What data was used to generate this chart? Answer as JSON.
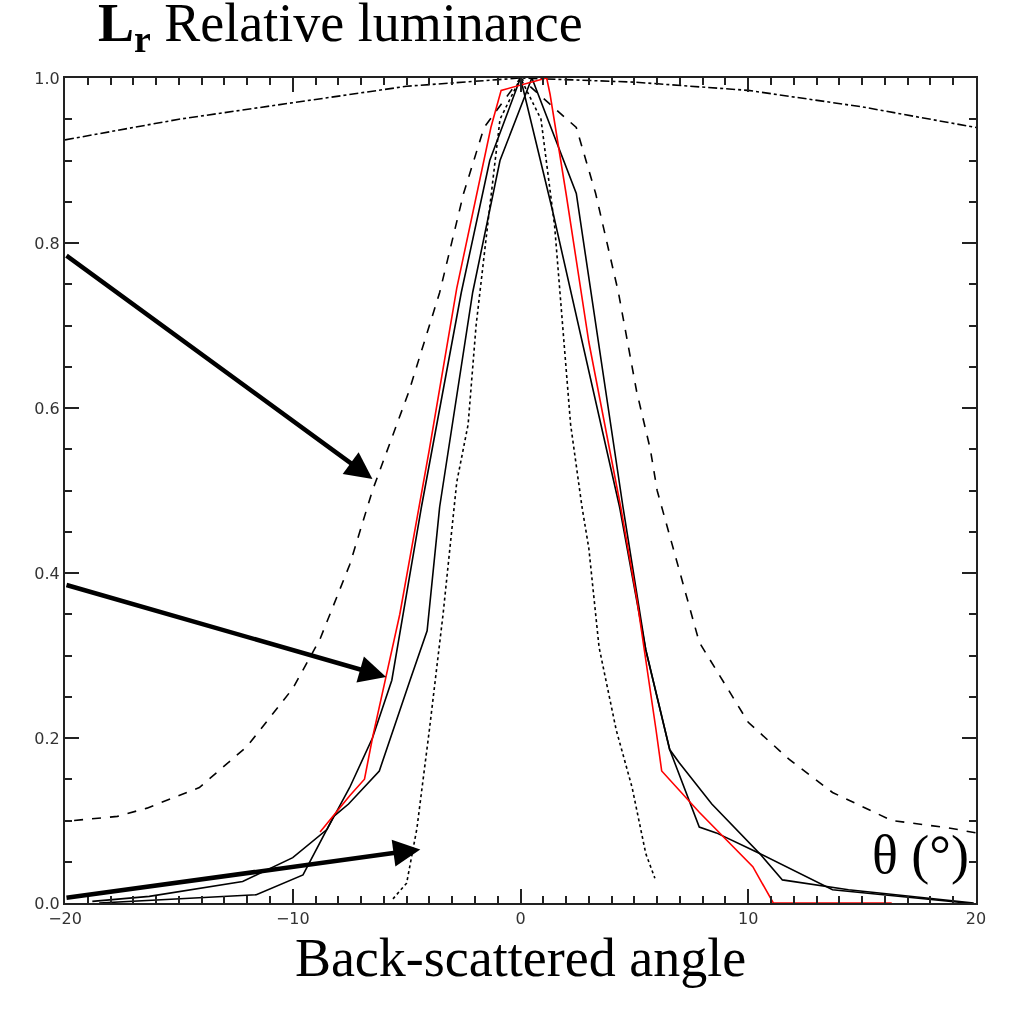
{
  "chart_data": {
    "type": "line",
    "title": "L$_{r}$ Relative luminance",
    "xlabel": "Back-scattered angle",
    "annotations": [
      "θ (°)"
    ],
    "xlim": [
      -20,
      20
    ],
    "ylim": [
      0,
      1.0
    ],
    "marker": "none",
    "xticks": [
      -20,
      {
        "value": -19,
        "label": null
      },
      {
        "value": -18,
        "label": null
      },
      {
        "value": -17,
        "label": null
      },
      {
        "value": -16,
        "label": null
      },
      {
        "value": -15,
        "label": null
      },
      {
        "value": -14,
        "label": null
      },
      {
        "value": -13,
        "label": null
      },
      {
        "value": -12,
        "label": null
      },
      {
        "value": -11,
        "label": null
      },
      -10,
      {
        "value": -9,
        "label": null
      },
      {
        "value": -8,
        "label": null
      },
      {
        "value": -7,
        "label": null
      },
      {
        "value": -6,
        "label": null
      },
      {
        "value": -5,
        "label": null
      },
      {
        "value": -4,
        "label": null
      },
      {
        "value": -3,
        "label": null
      },
      {
        "value": -2,
        "label": null
      },
      {
        "value": -1,
        "label": null
      },
      0,
      {
        "value": 1,
        "label": null
      },
      {
        "value": 2,
        "label": null
      },
      {
        "value": 3,
        "label": null
      },
      {
        "value": 4,
        "label": null
      },
      {
        "value": 5,
        "label": null
      },
      {
        "value": 6,
        "label": null
      },
      {
        "value": 7,
        "label": null
      },
      {
        "value": 8,
        "label": null
      },
      {
        "value": 9,
        "label": null
      },
      10,
      {
        "value": 11,
        "label": null
      },
      {
        "value": 12,
        "label": null
      },
      {
        "value": 13,
        "label": null
      },
      {
        "value": 14,
        "label": null
      },
      {
        "value": 15,
        "label": null
      },
      {
        "value": 16,
        "label": null
      },
      {
        "value": 17,
        "label": null
      },
      {
        "value": 18,
        "label": null
      },
      {
        "value": 19,
        "label": null
      },
      20
    ],
    "yticks": [
      {
        "value": 0,
        "label": "0.0"
      },
      {
        "value": 0.05,
        "label": null
      },
      {
        "value": 0.1,
        "label": null
      },
      {
        "value": 0.15,
        "label": null
      },
      {
        "value": 0.2,
        "label": "0.2"
      },
      {
        "value": 0.25,
        "label": null
      },
      {
        "value": 0.3,
        "label": null
      },
      {
        "value": 0.35,
        "label": null
      },
      {
        "value": 0.4,
        "label": "0.4"
      },
      {
        "value": 0.45,
        "label": null
      },
      {
        "value": 0.5,
        "label": null
      },
      {
        "value": 0.55,
        "label": null
      },
      {
        "value": 0.6,
        "label": "0.6"
      },
      {
        "value": 0.65,
        "label": null
      },
      {
        "value": 0.7,
        "label": null
      },
      {
        "value": 0.75,
        "label": null
      },
      {
        "value": 0.8,
        "label": "0.8"
      },
      {
        "value": 0.85,
        "label": null
      },
      {
        "value": 0.9,
        "label": null
      },
      {
        "value": 0.95,
        "label": null
      },
      {
        "value": 1.0,
        "label": "1.0"
      }
    ],
    "series": [
      {
        "color": "#000000",
        "line_style": "dashdot",
        "x": [
          -20,
          -15,
          -10,
          -5,
          0,
          5,
          10,
          15,
          20
        ],
        "values": [
          0.925,
          0.95,
          0.97,
          0.99,
          1.0,
          0.995,
          0.985,
          0.965,
          0.94
        ]
      },
      {
        "color": "#000000",
        "line_style": "dashed",
        "x": [
          -19.6,
          -17.7,
          -16.4,
          -14.1,
          -12.0,
          -10.0,
          -8.8,
          -7.5,
          -6.5,
          -4.9,
          -3.55,
          -2.5,
          -1.6,
          0,
          2.45,
          3.3,
          4.3,
          5.1,
          5.7,
          6.0,
          7.85,
          10.0,
          11.8,
          13.7,
          16.3,
          18.8,
          20
        ],
        "values": [
          0.1,
          0.105,
          0.115,
          0.14,
          0.19,
          0.26,
          0.32,
          0.41,
          0.5,
          0.62,
          0.74,
          0.86,
          0.94,
          1.0,
          0.94,
          0.86,
          0.74,
          0.62,
          0.55,
          0.5,
          0.316,
          0.219,
          0.174,
          0.134,
          0.1,
          0.091,
          0.085
        ]
      },
      {
        "color": "#000000",
        "line_style": "dotted",
        "x": [
          -5.6,
          -5.0,
          -4.55,
          -4.0,
          -3.4,
          -2.8,
          -2.3,
          -1.95,
          -1.45,
          -0.9,
          0,
          0.9,
          1.5,
          2.2,
          2.7,
          3.0,
          3.45,
          4.2,
          4.9,
          5.5,
          5.9
        ],
        "values": [
          0.005,
          0.024,
          0.09,
          0.21,
          0.35,
          0.51,
          0.58,
          0.7,
          0.82,
          0.95,
          1.0,
          0.95,
          0.82,
          0.58,
          0.48,
          0.43,
          0.31,
          0.21,
          0.14,
          0.06,
          0.03
        ]
      },
      {
        "color": "#000000",
        "line_style": "solid",
        "x": [
          -18.8,
          -16.3,
          -12.2,
          -10.0,
          -8.5,
          -7.5,
          -6.5,
          -5.65,
          -4.35,
          -2.6,
          -1.35,
          0,
          1.4,
          4.35,
          5.5,
          6.55,
          6.97,
          8.4,
          10.5,
          13.7,
          19.6
        ],
        "values": [
          0.002,
          0.008,
          0.026,
          0.055,
          0.089,
          0.14,
          0.2,
          0.27,
          0.48,
          0.74,
          0.9,
          1.0,
          0.84,
          0.48,
          0.307,
          0.186,
          0.17,
          0.12,
          0.06,
          0.016,
          0.0
        ]
      },
      {
        "color": "#000000",
        "line_style": "solid",
        "x": [
          -18.5,
          -11.6,
          -9.55,
          -8.2,
          -7.55,
          -6.2,
          -4.85,
          -4.1,
          -3.55,
          -2.1,
          -0.9,
          0.5,
          2.45,
          4.5,
          5.5,
          6.55,
          7.85,
          8.6,
          10.5,
          11.5,
          14.4,
          19.9
        ],
        "values": [
          0.0,
          0.01,
          0.034,
          0.105,
          0.12,
          0.16,
          0.27,
          0.33,
          0.48,
          0.74,
          0.9,
          1.0,
          0.86,
          0.48,
          0.307,
          0.186,
          0.092,
          0.085,
          0.06,
          0.028,
          0.016,
          0.0
        ]
      },
      {
        "color": "#ff0000",
        "line_style": "solid",
        "x": [
          -8.8,
          -7.5,
          -6.85,
          -6.5,
          -5.9,
          -5.3,
          -4.0,
          -2.8,
          -1.3,
          -0.85,
          1.15,
          1.3,
          2.0,
          3.0,
          4.4,
          5.1,
          5.95,
          6.2,
          7.85,
          10.2,
          11.1,
          16.3
        ],
        "values": [
          0.086,
          0.13,
          0.15,
          0.2,
          0.275,
          0.35,
          0.55,
          0.745,
          0.94,
          0.985,
          1.0,
          0.98,
          0.86,
          0.68,
          0.48,
          0.37,
          0.21,
          0.16,
          0.11,
          0.044,
          0.0,
          0.0
        ]
      }
    ]
  }
}
